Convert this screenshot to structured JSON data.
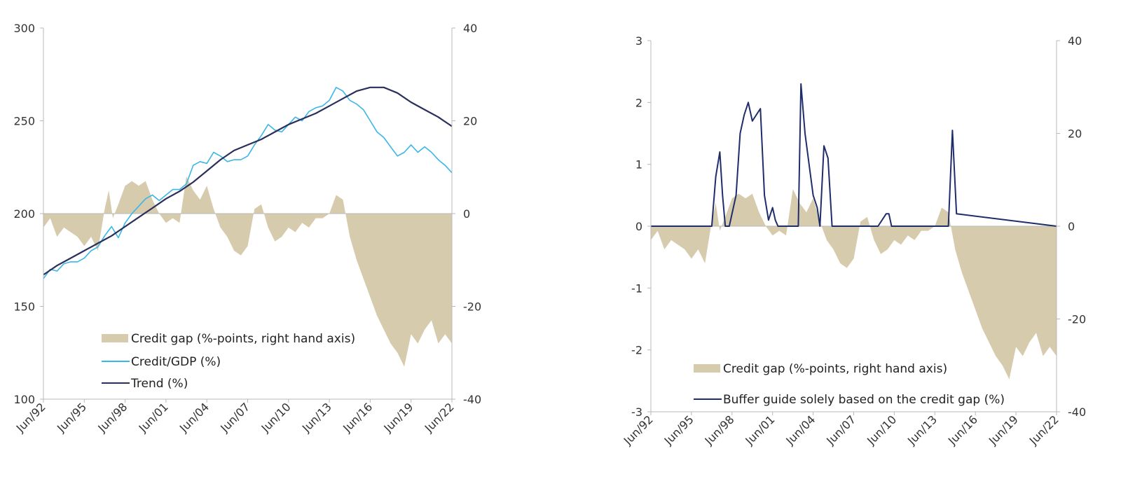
{
  "colors": {
    "credit_gap_fill": "#d6cbad",
    "credit_gdp_line": "#3bb6e8",
    "trend_line": "#2a2f5c",
    "buffer_line": "#1f2d6b",
    "axis": "#b8b8b8"
  },
  "chart_data": [
    {
      "type": "area",
      "x_tick_labels": [
        "Jun/92",
        "Jun/95",
        "Jun/98",
        "Jun/01",
        "Jun/04",
        "Jun/07",
        "Jun/10",
        "Jun/13",
        "Jun/16",
        "Jun/19",
        "Jun/22"
      ],
      "x_range": [
        1992.5,
        2022.5
      ],
      "y_left": {
        "range": [
          100,
          300
        ],
        "ticks": [
          "300",
          "250",
          "200",
          "150",
          "100"
        ]
      },
      "y_right": {
        "range": [
          -40,
          40
        ],
        "ticks": [
          "40",
          "20",
          "0",
          "-20",
          "-40"
        ]
      },
      "legend_position": "bottom-center",
      "grid": false,
      "series": [
        {
          "name": "Credit gap (%-points, right hand axis)",
          "kind": "area",
          "axis": "right",
          "x": [
            1992.5,
            1993,
            1993.5,
            1994,
            1994.5,
            1995,
            1995.5,
            1996,
            1996.5,
            1997,
            1997.3,
            1997.6,
            1998,
            1998.5,
            1999,
            1999.5,
            2000,
            2000.5,
            2001,
            2001.5,
            2002,
            2002.5,
            2003,
            2003.5,
            2004,
            2004.5,
            2005,
            2005.5,
            2006,
            2006.5,
            2007,
            2007.5,
            2008,
            2008.5,
            2009,
            2009.5,
            2010,
            2010.5,
            2011,
            2011.5,
            2012,
            2012.5,
            2013,
            2013.5,
            2014,
            2014.5,
            2015,
            2015.5,
            2016,
            2016.5,
            2017,
            2017.5,
            2018,
            2018.5,
            2019,
            2019.5,
            2020,
            2020.5,
            2021,
            2021.5,
            2022,
            2022.5
          ],
          "y": [
            -3,
            -1,
            -5,
            -3,
            -4,
            -5,
            -7,
            -5,
            -8,
            1,
            5,
            -1,
            2,
            6,
            7,
            6,
            7,
            3,
            0,
            -2,
            -1,
            -2,
            8,
            5,
            3,
            6,
            1,
            -3,
            -5,
            -8,
            -9,
            -7,
            1,
            2,
            -3,
            -6,
            -5,
            -3,
            -4,
            -2,
            -3,
            -1,
            -1,
            0,
            4,
            3,
            -5,
            -10,
            -14,
            -18,
            -22,
            -25,
            -28,
            -30,
            -33,
            -26,
            -28,
            -25,
            -23,
            -28,
            -26,
            -28
          ]
        },
        {
          "name": "Credit/GDP (%)",
          "kind": "line",
          "axis": "left",
          "x": [
            1992.5,
            1993,
            1993.5,
            1994,
            1994.5,
            1995,
            1995.5,
            1996,
            1996.5,
            1997,
            1997.5,
            1998,
            1998.5,
            1999,
            1999.5,
            2000,
            2000.5,
            2001,
            2001.5,
            2002,
            2002.5,
            2003,
            2003.5,
            2004,
            2004.5,
            2005,
            2005.5,
            2006,
            2006.5,
            2007,
            2007.5,
            2008,
            2008.5,
            2009,
            2009.5,
            2010,
            2010.5,
            2011,
            2011.5,
            2012,
            2012.5,
            2013,
            2013.5,
            2014,
            2014.5,
            2015,
            2015.5,
            2016,
            2016.5,
            2017,
            2017.5,
            2018,
            2018.5,
            2019,
            2019.5,
            2020,
            2020.5,
            2021,
            2021.5,
            2022,
            2022.5
          ],
          "y": [
            165,
            170,
            169,
            173,
            174,
            174,
            176,
            180,
            182,
            188,
            193,
            187,
            195,
            200,
            204,
            208,
            210,
            207,
            210,
            213,
            213,
            216,
            226,
            228,
            227,
            233,
            231,
            228,
            229,
            229,
            231,
            237,
            242,
            248,
            245,
            244,
            248,
            252,
            250,
            255,
            257,
            258,
            261,
            268,
            266,
            261,
            259,
            256,
            250,
            244,
            241,
            236,
            231,
            233,
            237,
            233,
            236,
            233,
            229,
            226,
            222
          ]
        },
        {
          "name": "Trend (%)",
          "kind": "line",
          "axis": "left",
          "x": [
            1992.5,
            1993.5,
            1994.5,
            1995.5,
            1996.5,
            1997.5,
            1998.5,
            1999.5,
            2000.5,
            2001.5,
            2002.5,
            2003.5,
            2004.5,
            2005.5,
            2006.5,
            2007.5,
            2008.5,
            2009.5,
            2010.5,
            2011.5,
            2012.5,
            2013.5,
            2014.5,
            2015.5,
            2016.5,
            2017.5,
            2018.5,
            2019.5,
            2020.5,
            2021.5,
            2022.5
          ],
          "y": [
            167,
            172,
            176,
            180,
            184,
            188,
            193,
            198,
            203,
            208,
            212,
            217,
            223,
            229,
            234,
            237,
            240,
            244,
            248,
            251,
            254,
            258,
            262,
            266,
            268,
            268,
            265,
            260,
            256,
            252,
            247
          ]
        }
      ]
    },
    {
      "type": "area",
      "x_tick_labels": [
        "Jun/92",
        "Jun/95",
        "Jun/98",
        "Jun/01",
        "Jun/04",
        "Jun/07",
        "Jun/10",
        "Jun/13",
        "Jun/16",
        "Jun/19",
        "Jun/22"
      ],
      "x_range": [
        1992.5,
        2022.5
      ],
      "y_left": {
        "range": [
          -3,
          3
        ],
        "ticks": [
          "3",
          "2",
          "1",
          "0",
          "-1",
          "-2",
          "-3"
        ]
      },
      "y_right": {
        "range": [
          -40,
          40
        ],
        "ticks": [
          "40",
          "20",
          "0",
          "-20",
          "-40"
        ]
      },
      "legend_position": "bottom-center",
      "grid": false,
      "series": [
        {
          "name": "Credit gap (%-points, right hand axis)",
          "kind": "area",
          "axis": "right",
          "x": [
            1992.5,
            1993,
            1993.5,
            1994,
            1994.5,
            1995,
            1995.5,
            1996,
            1996.5,
            1997,
            1997.3,
            1997.6,
            1998,
            1998.5,
            1999,
            1999.5,
            2000,
            2000.5,
            2001,
            2001.5,
            2002,
            2002.5,
            2003,
            2003.5,
            2004,
            2004.5,
            2005,
            2005.5,
            2006,
            2006.5,
            2007,
            2007.5,
            2008,
            2008.5,
            2009,
            2009.5,
            2010,
            2010.5,
            2011,
            2011.5,
            2012,
            2012.5,
            2013,
            2013.5,
            2014,
            2014.5,
            2015,
            2015.5,
            2016,
            2016.5,
            2017,
            2017.5,
            2018,
            2018.5,
            2019,
            2019.5,
            2020,
            2020.5,
            2021,
            2021.5,
            2022,
            2022.5
          ],
          "y": [
            -3,
            -1,
            -5,
            -3,
            -4,
            -5,
            -7,
            -5,
            -8,
            1,
            5,
            -1,
            2,
            6,
            7,
            6,
            7,
            3,
            0,
            -2,
            -1,
            -2,
            8,
            5,
            3,
            6,
            1,
            -3,
            -5,
            -8,
            -9,
            -7,
            1,
            2,
            -3,
            -6,
            -5,
            -3,
            -4,
            -2,
            -3,
            -1,
            -1,
            0,
            4,
            3,
            -5,
            -10,
            -14,
            -18,
            -22,
            -25,
            -28,
            -30,
            -33,
            -26,
            -28,
            -25,
            -23,
            -28,
            -26,
            -28
          ]
        },
        {
          "name": "Buffer guide solely based on the credit gap (%)",
          "kind": "line",
          "axis": "left",
          "x": [
            1992.5,
            1997,
            1997.3,
            1997.6,
            1997.8,
            1998,
            1998.3,
            1998.6,
            1998.8,
            1999.1,
            1999.4,
            1999.7,
            2000,
            2000.3,
            2000.6,
            2000.9,
            2001.2,
            2001.5,
            2001.7,
            2001.9,
            2002.1,
            2003.4,
            2003.6,
            2003.9,
            2004.2,
            2004.5,
            2004.8,
            2005,
            2005.3,
            2005.6,
            2005.9,
            2009.3,
            2009.6,
            2009.9,
            2010.1,
            2010.3,
            2014.5,
            2014.8,
            2015.1,
            2022.5
          ],
          "y": [
            0,
            0,
            0.8,
            1.2,
            0.5,
            0,
            0,
            0.3,
            0.5,
            1.5,
            1.8,
            2.0,
            1.7,
            1.8,
            1.9,
            0.5,
            0.1,
            0.3,
            0.1,
            0,
            0,
            0,
            2.3,
            1.5,
            1.0,
            0.5,
            0.3,
            0,
            1.3,
            1.1,
            0,
            0,
            0.1,
            0.2,
            0.2,
            0,
            0,
            1.55,
            0.2,
            0
          ]
        }
      ]
    }
  ]
}
